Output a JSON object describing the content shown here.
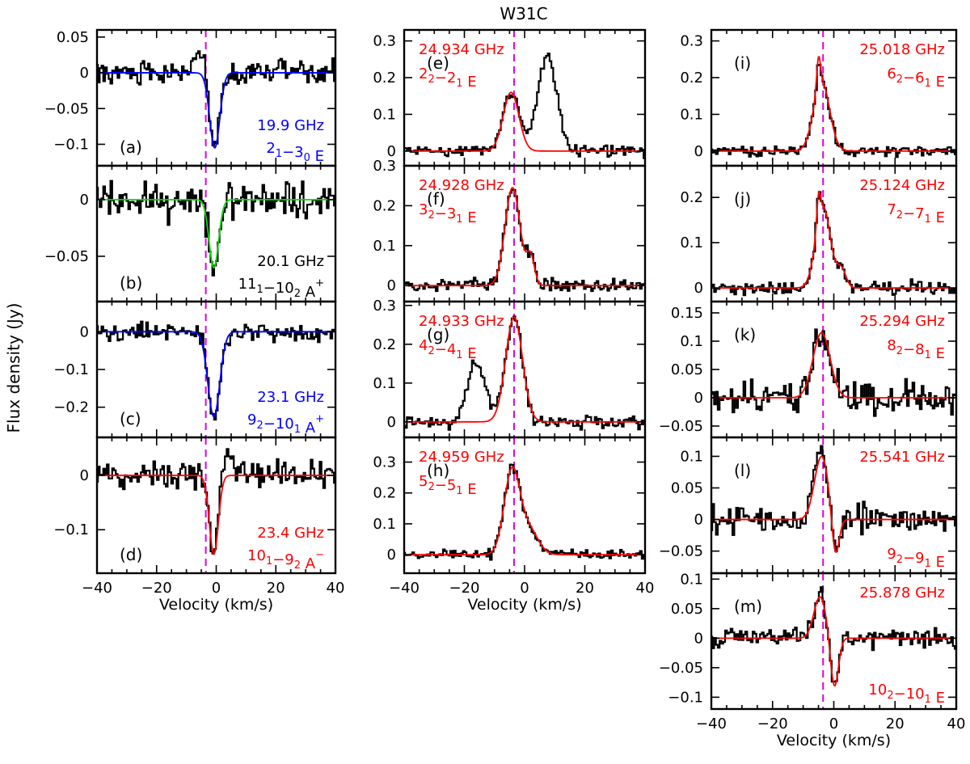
{
  "chart_data": {
    "type": "line",
    "title": "W31C",
    "ylabel": "Flux density (Jy)",
    "xlabel": "Velocity (km/s)",
    "xlim": [
      -40,
      40
    ],
    "xticks": [
      -40,
      -20,
      0,
      20,
      40
    ],
    "reference_velocity": -3.5,
    "colors": {
      "data": "#000000",
      "red_fit": "#ff0000",
      "blue_fit": "#0000ff",
      "green_fit": "#00dd00",
      "ref_line": "#dd00dd"
    },
    "columns": [
      {
        "panels": [
          {
            "id": "a",
            "tag": "(a)",
            "freq": "19.9 GHz",
            "trans": [
              "2",
              "1",
              "−3",
              "0",
              " E",
              ""
            ],
            "color": "#0000ff",
            "ylim": [
              -0.13,
              0.06
            ],
            "yticks": [
              0.05,
              0,
              -0.05,
              -0.1
            ],
            "yticklabels": [
              "0.05",
              "0",
              "−0.05",
              "−0.1"
            ],
            "components": [
              {
                "amp": -0.105,
                "center": -0.5,
                "sigma": 1.7
              }
            ],
            "noise": 0.012,
            "extra": [
              {
                "amp": 0.03,
                "center": -5.5,
                "sigma": 1.8
              }
            ]
          },
          {
            "id": "b",
            "tag": "(b)",
            "freq": "20.1 GHz",
            "trans": [
              "11",
              "1",
              "−10",
              "2",
              " A",
              "+"
            ],
            "color": "#00dd00",
            "ylim": [
              -0.09,
              0.03
            ],
            "yticks": [
              0,
              -0.05
            ],
            "yticklabels": [
              "0",
              "−0.05"
            ],
            "components": [
              {
                "amp": -0.06,
                "center": -0.8,
                "sigma": 1.6
              }
            ],
            "noise": 0.012,
            "extra": []
          },
          {
            "id": "c",
            "tag": "(c)",
            "freq": "23.1 GHz",
            "trans": [
              "9",
              "2",
              "−10",
              "1",
              " A",
              "+"
            ],
            "color": "#0000ff",
            "ylim": [
              -0.28,
              0.08
            ],
            "yticks": [
              0,
              -0.1,
              -0.2
            ],
            "yticklabels": [
              "0",
              "−0.1",
              "−0.2"
            ],
            "components": [
              {
                "amp": -0.225,
                "center": -0.8,
                "sigma": 2.0
              }
            ],
            "noise": 0.018,
            "extra": []
          },
          {
            "id": "d",
            "tag": "(d)",
            "freq": "23.4 GHz",
            "trans": [
              "10",
              "1",
              "−9",
              "2",
              " A",
              "−"
            ],
            "color": "#ff0000",
            "ylim": [
              -0.18,
              0.07
            ],
            "yticks": [
              0,
              -0.1
            ],
            "yticklabels": [
              "0",
              "−0.1"
            ],
            "components": [
              {
                "amp": -0.145,
                "center": -0.8,
                "sigma": 1.5
              }
            ],
            "noise": 0.018,
            "extra": [
              {
                "amp": 0.04,
                "center": 4.0,
                "sigma": 2.0
              }
            ]
          }
        ]
      },
      {
        "panels": [
          {
            "id": "e",
            "tag": "(e)",
            "freq": "24.934 GHz",
            "trans": [
              "2",
              "2",
              "−2",
              "1",
              " E",
              ""
            ],
            "color": "#ff0000",
            "ylim": [
              -0.04,
              0.33
            ],
            "yticks": [
              0.3,
              0.2,
              0.1,
              0
            ],
            "yticklabels": [
              "0.3",
              "0.2",
              "0.1",
              "0"
            ],
            "components": [
              {
                "amp": 0.16,
                "center": -4.5,
                "sigma": 2.6
              }
            ],
            "noise": 0.012,
            "extra": [
              {
                "amp": 0.26,
                "center": 7.5,
                "sigma": 3.2
              }
            ]
          },
          {
            "id": "f",
            "tag": "(f)",
            "freq": "24.928 GHz",
            "trans": [
              "3",
              "2",
              "−3",
              "1",
              " E",
              ""
            ],
            "color": "#ff0000",
            "ylim": [
              -0.04,
              0.3
            ],
            "yticks": [
              0.3,
              0.2,
              0.1,
              0
            ],
            "yticklabels": [
              "0.3",
              "0.2",
              "0.1",
              "0"
            ],
            "components": [
              {
                "amp": 0.245,
                "center": -4.0,
                "sigma": 2.5
              },
              {
                "amp": 0.07,
                "center": 2.0,
                "sigma": 1.3
              }
            ],
            "noise": 0.012,
            "extra": []
          },
          {
            "id": "g",
            "tag": "(g)",
            "freq": "24.933 GHz",
            "trans": [
              "4",
              "2",
              "−4",
              "1",
              " E",
              ""
            ],
            "color": "#ff0000",
            "ylim": [
              -0.04,
              0.31
            ],
            "yticks": [
              0.3,
              0.2,
              0.1,
              0
            ],
            "yticklabels": [
              "0.3",
              "0.2",
              "0.1",
              "0"
            ],
            "components": [
              {
                "amp": 0.27,
                "center": -3.5,
                "sigma": 2.8
              }
            ],
            "noise": 0.012,
            "extra": [
              {
                "amp": 0.15,
                "center": -16.0,
                "sigma": 3.0
              }
            ]
          },
          {
            "id": "h",
            "tag": "(h)",
            "freq": "24.959 GHz",
            "trans": [
              "5",
              "2",
              "−5",
              "1",
              " E",
              ""
            ],
            "color": "#ff0000",
            "ylim": [
              -0.06,
              0.38
            ],
            "yticks": [
              0.3,
              0.2,
              0.1,
              0
            ],
            "yticklabels": [
              "0.3",
              "0.2",
              "0.1",
              "0"
            ],
            "components": [
              {
                "amp": 0.27,
                "center": -4.2,
                "sigma": 2.6
              },
              {
                "amp": 0.08,
                "center": 1.5,
                "sigma": 3.0
              }
            ],
            "noise": 0.012,
            "extra": []
          }
        ]
      },
      {
        "panels": [
          {
            "id": "i",
            "tag": "(i)",
            "freq": "25.018 GHz",
            "trans": [
              "6",
              "2",
              "−6",
              "1",
              " E",
              ""
            ],
            "color": "#ff0000",
            "ylim": [
              -0.04,
              0.33
            ],
            "yticks": [
              0.3,
              0.2,
              0.1,
              0
            ],
            "yticklabels": [
              "0.3",
              "0.2",
              "0.1",
              "0"
            ],
            "components": [
              {
                "amp": 0.19,
                "center": -4.0,
                "sigma": 2.6
              },
              {
                "amp": 0.08,
                "center": -5.0,
                "sigma": 0.6
              }
            ],
            "noise": 0.01,
            "extra": []
          },
          {
            "id": "j",
            "tag": "(j)",
            "freq": "25.124 GHz",
            "trans": [
              "7",
              "2",
              "−7",
              "1",
              " E",
              ""
            ],
            "color": "#ff0000",
            "ylim": [
              -0.03,
              0.27
            ],
            "yticks": [
              0.2,
              0.1,
              0
            ],
            "yticklabels": [
              "0.2",
              "0.1",
              "0"
            ],
            "components": [
              {
                "amp": 0.18,
                "center": -3.5,
                "sigma": 2.4
              },
              {
                "amp": 0.04,
                "center": 2.5,
                "sigma": 1.5
              },
              {
                "amp": 0.06,
                "center": -5.0,
                "sigma": 0.6
              }
            ],
            "noise": 0.01,
            "extra": []
          },
          {
            "id": "k",
            "tag": "(k)",
            "freq": "25.294 GHz",
            "trans": [
              "8",
              "2",
              "−8",
              "1",
              " E",
              ""
            ],
            "color": "#ff0000",
            "ylim": [
              -0.07,
              0.17
            ],
            "yticks": [
              0.15,
              0.1,
              0.05,
              0,
              -0.05
            ],
            "yticklabels": [
              "0.15",
              "0.1",
              "0.05",
              "0",
              "−0.05"
            ],
            "components": [
              {
                "amp": 0.115,
                "center": -4.0,
                "sigma": 2.8
              }
            ],
            "noise": 0.02,
            "extra": []
          },
          {
            "id": "l",
            "tag": "(l)",
            "freq": "25.541 GHz",
            "trans": [
              "9",
              "2",
              "−9",
              "1",
              " E",
              ""
            ],
            "color": "#ff0000",
            "ylim": [
              -0.085,
              0.13
            ],
            "yticks": [
              0.1,
              0.05,
              0,
              -0.05
            ],
            "yticklabels": [
              "0.1",
              "0.05",
              "0",
              "−0.05"
            ],
            "components": [
              {
                "amp": 0.1,
                "center": -4.0,
                "sigma": 2.3
              },
              {
                "amp": -0.065,
                "center": 0.5,
                "sigma": 1.2
              }
            ],
            "noise": 0.015,
            "extra": []
          },
          {
            "id": "m",
            "tag": "(m)",
            "freq": "25.878 GHz",
            "trans": [
              "10",
              "2",
              "−10",
              "1",
              " E",
              ""
            ],
            "color": "#ff0000",
            "ylim": [
              -0.12,
              0.11
            ],
            "yticks": [
              0.1,
              0.05,
              0,
              -0.05,
              -0.1
            ],
            "yticklabels": [
              "0.1",
              "0.05",
              "0",
              "−0.05",
              "−0.1"
            ],
            "components": [
              {
                "amp": 0.07,
                "center": -4.5,
                "sigma": 2.0
              },
              {
                "amp": -0.085,
                "center": 0.2,
                "sigma": 1.3
              }
            ],
            "noise": 0.012,
            "extra": []
          }
        ]
      }
    ]
  }
}
